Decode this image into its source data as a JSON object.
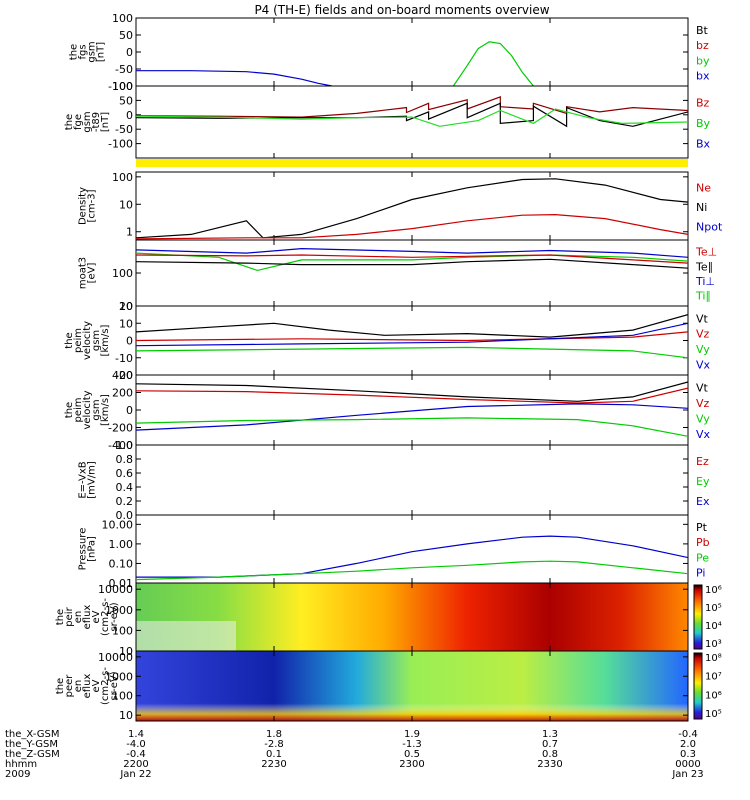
{
  "chart_data": {
    "type": "line",
    "title": "P4 (TH-E) fields and on-board moments overview",
    "time_ticks": [
      "2200",
      "2230",
      "2300",
      "2330",
      "0000"
    ],
    "panels": [
      {
        "id": "fgs",
        "ylabel": [
          "the",
          "fgs",
          "gsm",
          "[nT]"
        ],
        "ylim": [
          -100,
          100
        ],
        "scale": "linear",
        "yticks": [
          "100",
          "50",
          "0",
          "-50",
          "-100"
        ],
        "legend": [
          {
            "name": "Bt",
            "color": "#000000"
          },
          {
            "name": "bz",
            "color": "#cc0000"
          },
          {
            "name": "by",
            "color": "#00cc00"
          },
          {
            "name": "bx",
            "color": "#0000cc"
          }
        ]
      },
      {
        "id": "fge",
        "ylabel": [
          "the",
          "fge",
          "gsm",
          "-t89",
          "[nT]"
        ],
        "ylim": [
          -150,
          100
        ],
        "scale": "linear",
        "yticks": [
          "100",
          "50",
          "0",
          "-50",
          "-100"
        ],
        "legend": [
          {
            "name": "Bz",
            "color": "#cc0000"
          },
          {
            "name": "By",
            "color": "#00cc00"
          },
          {
            "name": "Bx",
            "color": "#0000cc"
          }
        ]
      },
      {
        "id": "density",
        "ylabel": [
          "Density",
          "[cm-3]"
        ],
        "ylim": [
          0.5,
          150
        ],
        "scale": "log",
        "yticks": [
          "100",
          "10",
          "1"
        ],
        "legend": [
          {
            "name": "Ne",
            "color": "#cc0000"
          },
          {
            "name": "Ni",
            "color": "#000000"
          },
          {
            "name": "Npot",
            "color": "#0000cc"
          }
        ]
      },
      {
        "id": "temperature",
        "ylabel": [
          "moat3",
          "[eV]"
        ],
        "ylim": [
          10,
          1000
        ],
        "scale": "log",
        "yticks": [
          "100",
          "10"
        ],
        "legend": [
          {
            "name": "Te⊥",
            "color": "#cc0000"
          },
          {
            "name": "Te∥",
            "color": "#000000"
          },
          {
            "name": "Ti⊥",
            "color": "#0000cc"
          },
          {
            "name": "Ti∥",
            "color": "#00cc00"
          }
        ]
      },
      {
        "id": "vel_e",
        "ylabel": [
          "the",
          "peim",
          "velocity",
          "gsm",
          "[km/s]"
        ],
        "ylim": [
          -20,
          20
        ],
        "scale": "linear",
        "yticks": [
          "20",
          "10",
          "0",
          "-10",
          "-20"
        ],
        "legend": [
          {
            "name": "Vt",
            "color": "#000000"
          },
          {
            "name": "Vz",
            "color": "#cc0000"
          },
          {
            "name": "Vy",
            "color": "#00cc00"
          },
          {
            "name": "Vx",
            "color": "#0000cc"
          }
        ]
      },
      {
        "id": "vel_i",
        "ylabel": [
          "the",
          "peim",
          "velocity",
          "gsm",
          "[km/s]"
        ],
        "ylim": [
          -400,
          400
        ],
        "scale": "linear",
        "yticks": [
          "400",
          "200",
          "0",
          "-200",
          "-400"
        ],
        "legend": [
          {
            "name": "Vt",
            "color": "#000000"
          },
          {
            "name": "Vz",
            "color": "#cc0000"
          },
          {
            "name": "Vy",
            "color": "#00cc00"
          },
          {
            "name": "Vx",
            "color": "#0000cc"
          }
        ]
      },
      {
        "id": "efield",
        "ylabel": [
          "E=-VxB",
          "[mV/m]"
        ],
        "ylim": [
          0,
          1
        ],
        "scale": "linear",
        "yticks": [
          "1.0",
          "0.8",
          "0.6",
          "0.4",
          "0.2",
          "0.0"
        ],
        "legend": [
          {
            "name": "Ez",
            "color": "#cc0000"
          },
          {
            "name": "Ey",
            "color": "#00cc00"
          },
          {
            "name": "Ex",
            "color": "#0000cc"
          }
        ]
      },
      {
        "id": "pressure",
        "ylabel": [
          "Pressure",
          "[nPa]"
        ],
        "ylim": [
          0.01,
          30
        ],
        "scale": "log",
        "yticks": [
          "10.00",
          "1.00",
          "0.10",
          "0.01"
        ],
        "legend": [
          {
            "name": "Pt",
            "color": "#000000"
          },
          {
            "name": "Pb",
            "color": "#cc0000"
          },
          {
            "name": "Pe",
            "color": "#00cc00"
          },
          {
            "name": "Pi",
            "color": "#0000cc"
          }
        ]
      },
      {
        "id": "spec_i",
        "ylabel": [
          "the",
          "peir",
          "en",
          "eflux",
          "eV",
          "(cm2-s-",
          "sr-eV)"
        ],
        "ylim": [
          10,
          20000
        ],
        "scale": "log",
        "yticks": [
          "10000",
          "1000",
          "100",
          "10"
        ],
        "colorbar": {
          "labels": [
            "10⁶",
            "10⁵",
            "10⁴",
            "10³"
          ]
        }
      },
      {
        "id": "spec_e",
        "ylabel": [
          "the",
          "peer",
          "en",
          "eflux",
          "eV",
          "(cm2-s-",
          "sr-eV)"
        ],
        "ylim": [
          5,
          20000
        ],
        "scale": "log",
        "yticks": [
          "10000",
          "1000",
          "100",
          "10"
        ],
        "colorbar": {
          "labels": [
            "10⁸",
            "10⁷",
            "10⁶",
            "10⁵"
          ]
        }
      }
    ],
    "series": {
      "fgs": [
        {
          "name": "bx",
          "color": "#0000cc",
          "x": [
            0,
            0.1,
            0.2,
            0.25,
            0.3,
            0.33,
            0.355
          ],
          "y": [
            -55,
            -55,
            -58,
            -65,
            -80,
            -92,
            -100
          ]
        },
        {
          "name": "by",
          "color": "#00cc00",
          "x": [
            0.575,
            0.6,
            0.62,
            0.64,
            0.66,
            0.68,
            0.7,
            0.72
          ],
          "y": [
            -100,
            -40,
            10,
            30,
            25,
            -10,
            -60,
            -100
          ]
        }
      ],
      "fge": [
        {
          "name": "Bz",
          "color": "#8b0000",
          "x": [
            0,
            0.15,
            0.3,
            0.4,
            0.49,
            0.49,
            0.53,
            0.53,
            0.6,
            0.6,
            0.66,
            0.66,
            0.72,
            0.72,
            0.78,
            0.78,
            0.84,
            0.9,
            1
          ],
          "y": [
            -3,
            -5,
            -8,
            5,
            25,
            8,
            40,
            18,
            52,
            20,
            62,
            28,
            20,
            40,
            5,
            28,
            10,
            25,
            15
          ]
        },
        {
          "name": "Bt",
          "color": "#000000",
          "x": [
            0,
            0.15,
            0.3,
            0.4,
            0.49,
            0.49,
            0.53,
            0.53,
            0.6,
            0.6,
            0.66,
            0.66,
            0.72,
            0.72,
            0.78,
            0.78,
            0.84,
            0.9,
            1
          ],
          "y": [
            -10,
            -12,
            -10,
            -10,
            -5,
            -20,
            10,
            -15,
            40,
            -10,
            40,
            -30,
            -20,
            30,
            -40,
            25,
            -20,
            -40,
            10
          ]
        },
        {
          "name": "By",
          "color": "#22dd22",
          "x": [
            0,
            0.15,
            0.3,
            0.4,
            0.5,
            0.55,
            0.62,
            0.66,
            0.72,
            0.76,
            0.82,
            0.88,
            1
          ],
          "y": [
            -5,
            -8,
            -15,
            -10,
            -8,
            -40,
            -20,
            15,
            -30,
            20,
            -10,
            -30,
            -25
          ]
        }
      ],
      "density": [
        {
          "name": "Ni",
          "color": "#000000",
          "x": [
            0,
            0.1,
            0.2,
            0.23,
            0.3,
            0.4,
            0.5,
            0.6,
            0.7,
            0.76,
            0.85,
            0.95,
            1
          ],
          "y": [
            0.6,
            0.8,
            2.5,
            0.6,
            0.8,
            3,
            15,
            40,
            80,
            85,
            50,
            15,
            12
          ]
        },
        {
          "name": "Ne",
          "color": "#cc0000",
          "x": [
            0,
            0.2,
            0.3,
            0.4,
            0.5,
            0.6,
            0.7,
            0.76,
            0.85,
            0.95,
            1
          ],
          "y": [
            0.55,
            0.6,
            0.6,
            0.8,
            1.3,
            2.5,
            4,
            4.2,
            3,
            1.2,
            0.8
          ]
        }
      ],
      "temperature": [
        {
          "name": "Ti⊥",
          "color": "#0000cc",
          "x": [
            0,
            0.2,
            0.3,
            0.5,
            0.6,
            0.75,
            0.9,
            1
          ],
          "y": [
            500,
            400,
            550,
            450,
            400,
            480,
            400,
            300
          ]
        },
        {
          "name": "Ti∥",
          "color": "#00cc00",
          "x": [
            0,
            0.15,
            0.22,
            0.3,
            0.5,
            0.6,
            0.75,
            0.9,
            1
          ],
          "y": [
            400,
            300,
            120,
            250,
            250,
            300,
            350,
            300,
            230
          ]
        },
        {
          "name": "Te⊥",
          "color": "#cc0000",
          "x": [
            0,
            0.2,
            0.3,
            0.5,
            0.6,
            0.75,
            0.9,
            1
          ],
          "y": [
            350,
            330,
            350,
            300,
            320,
            350,
            250,
            200
          ]
        },
        {
          "name": "Te∥",
          "color": "#000000",
          "x": [
            0,
            0.2,
            0.3,
            0.5,
            0.6,
            0.75,
            0.9,
            1
          ],
          "y": [
            220,
            200,
            180,
            180,
            220,
            260,
            180,
            140
          ]
        }
      ],
      "vel_e": [
        {
          "name": "Vt",
          "color": "#000000",
          "x": [
            0,
            0.15,
            0.25,
            0.35,
            0.45,
            0.6,
            0.75,
            0.9,
            1
          ],
          "y": [
            5,
            8,
            10,
            6,
            3,
            4,
            2,
            6,
            15
          ]
        },
        {
          "name": "Vz",
          "color": "#cc0000",
          "x": [
            0,
            0.3,
            0.6,
            0.9,
            1
          ],
          "y": [
            0,
            1,
            0,
            2,
            5
          ]
        },
        {
          "name": "Vx",
          "color": "#0000cc",
          "x": [
            0,
            0.3,
            0.6,
            0.9,
            1
          ],
          "y": [
            -3,
            -2,
            -1,
            3,
            10
          ]
        },
        {
          "name": "Vy",
          "color": "#00cc00",
          "x": [
            0,
            0.3,
            0.6,
            0.9,
            1
          ],
          "y": [
            -6,
            -5,
            -4,
            -6,
            -10
          ]
        }
      ],
      "vel_i": [
        {
          "name": "Vt",
          "color": "#000000",
          "x": [
            0,
            0.2,
            0.4,
            0.6,
            0.8,
            0.9,
            1
          ],
          "y": [
            300,
            280,
            220,
            150,
            100,
            150,
            320
          ]
        },
        {
          "name": "Vz",
          "color": "#cc0000",
          "x": [
            0,
            0.2,
            0.4,
            0.6,
            0.8,
            0.9,
            1
          ],
          "y": [
            220,
            210,
            170,
            120,
            80,
            100,
            250
          ]
        },
        {
          "name": "Vx",
          "color": "#0000cc",
          "x": [
            0,
            0.2,
            0.4,
            0.6,
            0.8,
            0.9,
            1
          ],
          "y": [
            -230,
            -170,
            -60,
            40,
            70,
            60,
            20
          ]
        },
        {
          "name": "Vy",
          "color": "#00cc00",
          "x": [
            0,
            0.2,
            0.4,
            0.6,
            0.8,
            0.9,
            1
          ],
          "y": [
            -150,
            -120,
            -110,
            -90,
            -110,
            -180,
            -300
          ]
        }
      ],
      "pressure": [
        {
          "name": "Pi",
          "color": "#0000cc",
          "x": [
            0,
            0.15,
            0.3,
            0.4,
            0.5,
            0.6,
            0.7,
            0.75,
            0.8,
            0.9,
            1
          ],
          "y": [
            0.02,
            0.02,
            0.03,
            0.1,
            0.4,
            1,
            2.2,
            2.5,
            2.2,
            0.8,
            0.2
          ]
        },
        {
          "name": "Pe",
          "color": "#00cc00",
          "x": [
            0,
            0.15,
            0.3,
            0.4,
            0.5,
            0.6,
            0.7,
            0.75,
            0.8,
            0.9,
            1
          ],
          "y": [
            0.015,
            0.02,
            0.03,
            0.04,
            0.06,
            0.08,
            0.12,
            0.13,
            0.12,
            0.06,
            0.03
          ]
        }
      ]
    },
    "ephemeris": {
      "labels": [
        "the_X-GSM",
        "the_Y-GSM",
        "the_Z-GSM",
        "hhmm",
        "2009"
      ],
      "columns": [
        [
          "1.4",
          "-4.0",
          "-0.4",
          "2200",
          "Jan 22"
        ],
        [
          "1.8",
          "-2.8",
          "0.1",
          "2230",
          ""
        ],
        [
          "1.9",
          "-1.3",
          "0.5",
          "2300",
          ""
        ],
        [
          "1.3",
          "0.7",
          "0.8",
          "2330",
          ""
        ],
        [
          "-0.4",
          "2.0",
          "0.3",
          "0000",
          "Jan 23"
        ]
      ]
    }
  }
}
